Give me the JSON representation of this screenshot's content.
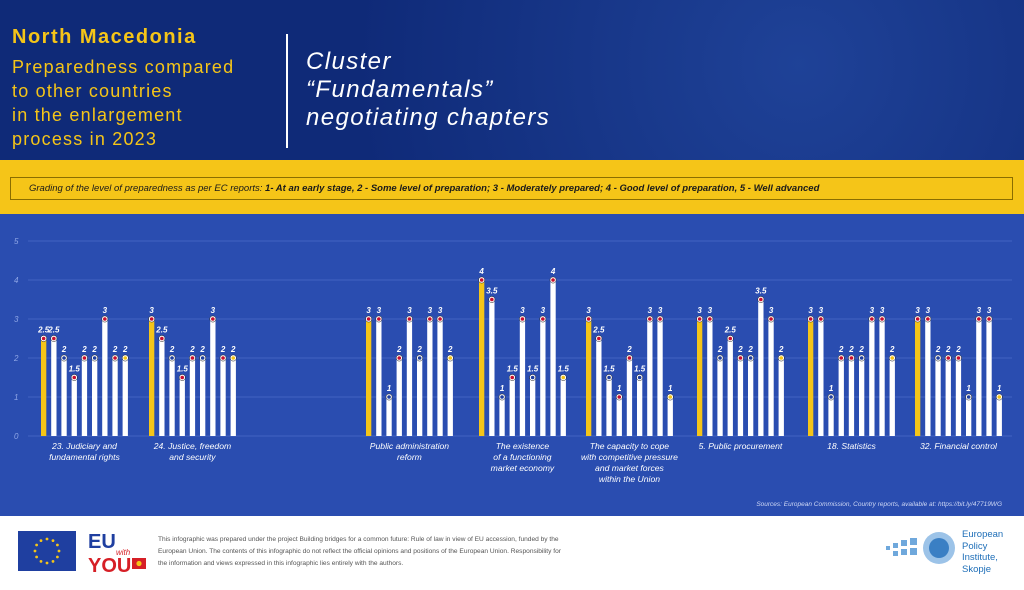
{
  "header": {
    "country": "North Macedonia",
    "subtitle_lines": [
      "Preparedness compared",
      "to other countries",
      "in the enlargement",
      "process in 2023"
    ],
    "cluster_lines": [
      "Cluster",
      "“Fundamentals”",
      "negotiating chapters"
    ]
  },
  "legend": {
    "intro": "Grading of the level of preparedness as per EC reports:",
    "g1": "1- At an early stage,",
    "g2": "2 - Some level of preparation;",
    "g3": "3 - Moderately prepared;",
    "g4": "4 - Good level of preparation,",
    "g5": "5 - Well advanced"
  },
  "colors": {
    "header_bg": "#0f2a78",
    "accent_yellow": "#f5c518",
    "chart_bg": "#2a4db0",
    "bar_white": "#ffffff",
    "bar_highlight": "#f5c518"
  },
  "chart_data": {
    "type": "bar",
    "ylim": [
      0,
      5
    ],
    "yticks": [
      0,
      1,
      2,
      3,
      4,
      5
    ],
    "grid": true,
    "highlight_note": "first bar of each group = North Macedonia",
    "groups": [
      {
        "label": [
          "23. Judiciary and",
          "fundamental rights"
        ],
        "values": [
          2.5,
          2.5,
          2,
          1.5,
          2,
          2,
          3,
          2,
          2
        ]
      },
      {
        "label": [
          "24. Justice, freedom",
          "and security"
        ],
        "values": [
          3,
          2.5,
          2,
          1.5,
          2,
          2,
          3,
          2,
          2
        ]
      },
      {
        "label": [
          "Public administration",
          "reform"
        ],
        "values": [
          3,
          3,
          1,
          2,
          3,
          2,
          3,
          3,
          2
        ]
      },
      {
        "label": [
          "The existence",
          "of a functioning",
          "market economy"
        ],
        "values": [
          4,
          3.5,
          1,
          1.5,
          3,
          1.5,
          3,
          4,
          1.5
        ]
      },
      {
        "label": [
          "The capacity to cope",
          "with competitive pressure",
          "and market forces",
          "within the Union"
        ],
        "values": [
          3,
          2.5,
          1.5,
          1,
          2,
          1.5,
          3,
          3,
          1
        ]
      },
      {
        "label": [
          "5. Public procurement"
        ],
        "values": [
          3,
          3,
          2,
          2.5,
          2,
          2,
          3.5,
          3,
          2
        ]
      },
      {
        "label": [
          "18. Statistics"
        ],
        "values": [
          3,
          3,
          1,
          2,
          2,
          2,
          3,
          3,
          2
        ]
      },
      {
        "label": [
          "32. Financial control"
        ],
        "values": [
          3,
          3,
          2,
          2,
          2,
          1,
          3,
          3,
          1
        ]
      }
    ]
  },
  "source": "Sources: European Commission, Country reports, available at: https://bit.ly/47719WG",
  "footer": {
    "text": "This infographic was prepared under the project Building bridges for a common future: Rule of law in view of EU accession, funded by the European Union. The contents of this infographic do not reflect the official opinions and positions of the European Union. Responsibility for the information and views expressed in this infographic lies entirely with the authors.",
    "eu_with_you_logo": "EU with YOU",
    "epi_lines": [
      "European",
      "Policy",
      "Institute,",
      "Skopje"
    ]
  }
}
